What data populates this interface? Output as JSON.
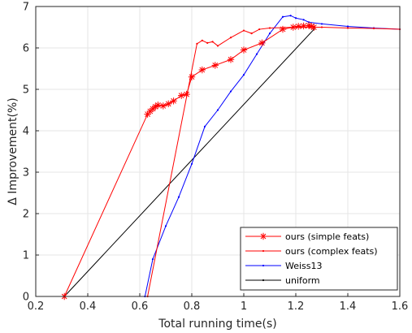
{
  "chart_data": {
    "type": "line",
    "xlabel": "Total running time(s)",
    "ylabel": "Δ Improvement(%)",
    "xlim": [
      0.2,
      1.6
    ],
    "ylim": [
      0,
      7
    ],
    "xticks": [
      0.2,
      0.4,
      0.6,
      0.8,
      1.0,
      1.2,
      1.4,
      1.6
    ],
    "xtick_labels": [
      "0.2",
      "0.4",
      "0.6",
      "0.8",
      "1",
      "1.2",
      "1.4",
      "1.6"
    ],
    "yticks": [
      0,
      1,
      2,
      3,
      4,
      5,
      6,
      7
    ],
    "ytick_labels": [
      "0",
      "1",
      "2",
      "3",
      "4",
      "5",
      "6",
      "7"
    ],
    "grid": true,
    "legend_position": "bottom-right",
    "series": [
      {
        "name": "ours (simple feats)",
        "color": "#ff0000",
        "marker": "asterisk",
        "x": [
          0.31,
          0.63,
          0.64,
          0.65,
          0.66,
          0.67,
          0.69,
          0.71,
          0.73,
          0.76,
          0.78,
          0.8,
          0.84,
          0.89,
          0.95,
          1.0,
          1.07,
          1.15,
          1.19,
          1.21,
          1.23,
          1.25,
          1.26,
          1.27
        ],
        "y": [
          0.0,
          4.4,
          4.47,
          4.53,
          4.58,
          4.62,
          4.6,
          4.65,
          4.72,
          4.85,
          4.88,
          5.3,
          5.47,
          5.58,
          5.72,
          5.95,
          6.12,
          6.45,
          6.5,
          6.52,
          6.53,
          6.54,
          6.52,
          6.5
        ]
      },
      {
        "name": "ours (complex feats)",
        "color": "#ff0000",
        "marker": "dot",
        "x": [
          0.63,
          0.82,
          0.84,
          0.86,
          0.88,
          0.9,
          0.95,
          1.0,
          1.03,
          1.06,
          1.1,
          1.2,
          1.3,
          1.4,
          1.5,
          1.6
        ],
        "y": [
          0.0,
          6.1,
          6.18,
          6.12,
          6.15,
          6.05,
          6.25,
          6.42,
          6.35,
          6.45,
          6.48,
          6.5,
          6.5,
          6.48,
          6.47,
          6.45
        ]
      },
      {
        "name": "Weiss13",
        "color": "#0000ff",
        "marker": "dot",
        "x": [
          0.62,
          0.65,
          0.7,
          0.75,
          0.8,
          0.85,
          0.9,
          0.95,
          1.0,
          1.05,
          1.1,
          1.15,
          1.18,
          1.2,
          1.23,
          1.25,
          1.3,
          1.4,
          1.5,
          1.6
        ],
        "y": [
          0.0,
          0.9,
          1.7,
          2.4,
          3.2,
          4.1,
          4.5,
          4.95,
          5.35,
          5.85,
          6.35,
          6.75,
          6.78,
          6.72,
          6.68,
          6.62,
          6.58,
          6.52,
          6.48,
          6.45
        ]
      },
      {
        "name": "uniform",
        "color": "#000000",
        "marker": "dot",
        "x": [
          0.31,
          1.27
        ],
        "y": [
          0.0,
          6.45
        ]
      }
    ]
  }
}
